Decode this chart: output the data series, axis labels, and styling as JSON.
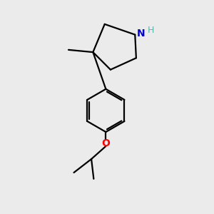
{
  "background_color": "#ebebeb",
  "bond_color": "#000000",
  "N_color": "#0000cd",
  "H_color": "#50b8b0",
  "O_color": "#ff0000",
  "line_width": 1.6,
  "font_size_N": 10,
  "font_size_H": 9,
  "font_size_O": 10,
  "xlim": [
    1.0,
    8.0
  ],
  "ylim": [
    0.5,
    9.5
  ]
}
